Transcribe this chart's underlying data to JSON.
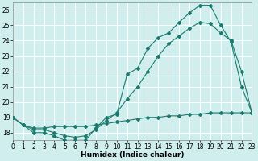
{
  "xlabel": "Humidex (Indice chaleur)",
  "bg_color": "#d0eeee",
  "grid_color": "#ffffff",
  "line_color": "#1a7a6e",
  "xlim": [
    0,
    23
  ],
  "ylim": [
    17.5,
    26.5
  ],
  "yticks": [
    18,
    19,
    20,
    21,
    22,
    23,
    24,
    25,
    26
  ],
  "xticks": [
    0,
    1,
    2,
    3,
    4,
    5,
    6,
    7,
    8,
    9,
    10,
    11,
    12,
    13,
    14,
    15,
    16,
    17,
    18,
    19,
    20,
    21,
    22,
    23
  ],
  "series": [
    {
      "x": [
        0,
        1,
        2,
        3,
        4,
        5,
        6,
        7,
        8,
        9,
        10,
        11,
        12,
        13,
        14,
        15,
        16,
        17,
        18,
        19,
        20,
        21,
        22,
        23
      ],
      "y": [
        19.0,
        18.5,
        18.0,
        18.0,
        17.8,
        17.5,
        17.5,
        17.5,
        18.3,
        19.0,
        19.2,
        21.8,
        22.2,
        23.5,
        24.2,
        24.5,
        25.2,
        25.8,
        26.3,
        26.3,
        25.0,
        23.9,
        21.0,
        19.3
      ]
    },
    {
      "x": [
        0,
        1,
        2,
        3,
        4,
        5,
        6,
        7,
        8,
        9,
        10,
        11,
        12,
        13,
        14,
        15,
        16,
        17,
        18,
        19,
        20,
        21,
        22,
        23
      ],
      "y": [
        19.0,
        18.5,
        18.2,
        18.2,
        18.0,
        17.8,
        17.7,
        17.8,
        18.2,
        18.8,
        19.3,
        20.2,
        21.0,
        22.0,
        23.0,
        23.8,
        24.3,
        24.8,
        25.2,
        25.1,
        24.5,
        24.0,
        22.0,
        19.3
      ]
    },
    {
      "x": [
        0,
        1,
        2,
        3,
        4,
        5,
        6,
        7,
        8,
        9,
        10,
        11,
        12,
        13,
        14,
        15,
        16,
        17,
        18,
        19,
        20,
        21,
        22,
        23
      ],
      "y": [
        19.0,
        18.5,
        18.3,
        18.3,
        18.4,
        18.4,
        18.4,
        18.4,
        18.5,
        18.6,
        18.7,
        18.8,
        18.9,
        19.0,
        19.0,
        19.1,
        19.1,
        19.2,
        19.2,
        19.3,
        19.3,
        19.3,
        19.3,
        19.3
      ]
    }
  ]
}
